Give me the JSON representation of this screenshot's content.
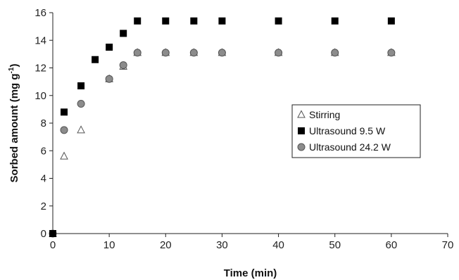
{
  "chart_data": {
    "type": "scatter",
    "xlabel": "Time (min)",
    "ylabel": "Sorbed amount (mg g",
    "ylabel_sup": "-1",
    "ylabel_close": ")",
    "xlim": [
      0,
      70
    ],
    "ylim": [
      0,
      16
    ],
    "xticks": [
      "0",
      "10",
      "20",
      "30",
      "40",
      "50",
      "60",
      "70"
    ],
    "yticks": [
      "0",
      "2",
      "4",
      "6",
      "8",
      "10",
      "12",
      "14",
      "16"
    ],
    "grid": false,
    "legend_position": "right",
    "series": [
      {
        "name": "Stirring",
        "marker": "open-triangle",
        "color": "#555555",
        "x": [
          0,
          2,
          5,
          10,
          12.5,
          15,
          20,
          25,
          30,
          40,
          50,
          60
        ],
        "y": [
          0,
          5.6,
          7.5,
          11.2,
          12.1,
          13.1,
          13.1,
          13.1,
          13.1,
          13.1,
          13.1,
          13.1
        ]
      },
      {
        "name": "Ultrasound 9.5 W",
        "marker": "filled-square",
        "color": "#000000",
        "x": [
          0,
          2,
          5,
          7.5,
          10,
          12.5,
          15,
          20,
          25,
          30,
          40,
          50,
          60
        ],
        "y": [
          0,
          8.8,
          10.7,
          12.6,
          13.5,
          14.5,
          15.4,
          15.4,
          15.4,
          15.4,
          15.4,
          15.4,
          15.4
        ]
      },
      {
        "name": "Ultrasound 24.2 W",
        "marker": "gray-circle",
        "color": "#8c8c8c",
        "x": [
          0,
          2,
          5,
          10,
          12.5,
          15,
          20,
          25,
          30,
          40,
          50,
          60
        ],
        "y": [
          0,
          7.5,
          9.4,
          11.2,
          12.2,
          13.1,
          13.1,
          13.1,
          13.1,
          13.1,
          13.1,
          13.1
        ]
      }
    ]
  }
}
